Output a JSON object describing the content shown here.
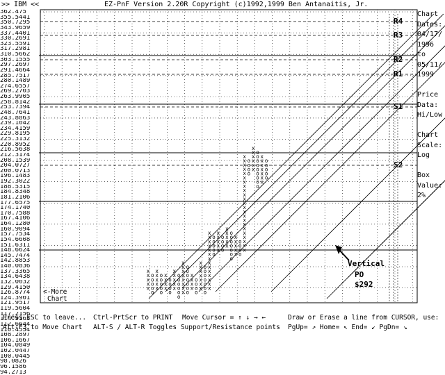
{
  "header": {
    "nav": ">> IBM <<",
    "title": "EZ-PnF Version 2.20R Copyright (c)1992,1999 Ben Antanaitis, Jr."
  },
  "y_axis_labels": [
    "362.475",
    "355.5441",
    "350.7295",
    "343.9659",
    "337.4401",
    "330.2691",
    "323.5591",
    "317.2981",
    "310.5662",
    "303.1555",
    "297.2697",
    "291.4664",
    "285.7517",
    "280.1489",
    "274.6557",
    "269.2703",
    "263.9905",
    "258.8142",
    "253.7394",
    "248.7641",
    "243.8863",
    "239.1042",
    "234.4159",
    "229.8195",
    "225.3132",
    "220.8952",
    "216.5638",
    "212.3174",
    "208.1539",
    "204.0727",
    "200.0713",
    "196.1483",
    "192.3022",
    "188.5315",
    "184.8348",
    "181.2106",
    "177.6575",
    "174.1740",
    "170.7588",
    "167.4106",
    "164.1280",
    "160.9094",
    "157.7534",
    "154.6608",
    "151.6311",
    "148.6624",
    "145.7474",
    "142.8853",
    "140.0836",
    "137.3365",
    "134.6438",
    "132.0032",
    "129.4150",
    "126.8774",
    "124.3901",
    "121.9517",
    "119.5604",
    "117.2156",
    "114.9165",
    "112.6644",
    "110.4554",
    "108.2897",
    "106.1667",
    "104.0849",
    "102.0447",
    "100.0445",
    "98.0826",
    "96.1586",
    "94.2713"
  ],
  "chart_data": {
    "type": "point-and-figure",
    "columns": [
      {
        "x": "1998-04",
        "type": "X",
        "from": 100.04,
        "to": 108.29
      },
      {
        "x": "1998-05",
        "type": "O",
        "from": 106.17,
        "to": 98.08
      },
      {
        "x": "1998-05",
        "type": "X",
        "from": 100.04,
        "to": 108.29
      },
      {
        "x": "1998-06",
        "type": "O",
        "from": 106.17,
        "to": 98.08
      },
      {
        "x": "1998-06",
        "type": "X",
        "from": 100.04,
        "to": 106.17
      },
      {
        "x": "1998-07",
        "type": "O",
        "from": 104.08,
        "to": 98.08
      },
      {
        "x": "1998-07",
        "type": "X",
        "from": 100.04,
        "to": 108.29
      },
      {
        "x": "1998-08",
        "type": "O",
        "from": 106.17,
        "to": 96.16
      },
      {
        "x": "1998-08",
        "type": "X",
        "from": 98.08,
        "to": 112.66
      },
      {
        "x": "1998-09",
        "type": "O",
        "from": 110.46,
        "to": 98.08
      },
      {
        "x": "1998-09",
        "type": "X",
        "from": 100.04,
        "to": 106.17
      },
      {
        "x": "1998-10",
        "type": "O",
        "from": 104.08,
        "to": 98.08
      },
      {
        "x": "1998-10",
        "type": "X",
        "from": 100.04,
        "to": 112.66
      },
      {
        "x": "1998-10",
        "type": "O",
        "from": 110.46,
        "to": 98.08
      },
      {
        "x": "1998-11",
        "type": "X",
        "from": 100.04,
        "to": 129.42
      },
      {
        "x": "1998-11",
        "type": "O",
        "from": 126.88,
        "to": 117.22
      },
      {
        "x": "1998-12",
        "type": "X",
        "from": 119.56,
        "to": 129.42
      },
      {
        "x": "1998-12",
        "type": "O",
        "from": 126.88,
        "to": 119.56
      },
      {
        "x": "1999-01",
        "type": "X",
        "from": 121.95,
        "to": 132.0
      },
      {
        "x": "1999-01",
        "type": "O",
        "from": 129.42,
        "to": 114.92
      },
      {
        "x": "1999-02",
        "type": "X",
        "from": 117.22,
        "to": 126.88
      },
      {
        "x": "1999-02",
        "type": "O",
        "from": 124.39,
        "to": 117.22
      },
      {
        "x": "1999-03",
        "type": "X",
        "from": 119.56,
        "to": 185.0
      },
      {
        "x": "1999-03",
        "type": "O",
        "from": 181.21,
        "to": 170.76
      },
      {
        "x": "1999-04",
        "type": "X",
        "from": 174.17,
        "to": 192.3
      },
      {
        "x": "1999-04",
        "type": "O",
        "from": 188.53,
        "to": 160.91
      },
      {
        "x": "1999-04",
        "type": "X",
        "from": 164.13,
        "to": 184.83
      },
      {
        "x": "1999-05",
        "type": "O",
        "from": 181.21,
        "to": 167.41
      }
    ],
    "trend_lines": [
      "R4",
      "R3",
      "R2",
      "R1",
      "S1",
      "S2"
    ],
    "annotation": {
      "text_lines": [
        "Vertical",
        "PO",
        "$292"
      ]
    },
    "x_tick_labels": [
      "9",
      "8",
      "9",
      "9",
      "8",
      "9"
    ]
  },
  "side_panel": {
    "lines": [
      "Chart",
      "Dates:",
      "04/17/",
      "1996",
      "to",
      "05/11/",
      "1999",
      "",
      "Price",
      "Data:",
      "Hi/Low",
      "",
      "Chart",
      "Scale:",
      "Log",
      "",
      "Box",
      "Value:",
      "2%"
    ]
  },
  "more_chart": {
    "line1": "<-More",
    "line2": "Chart"
  },
  "footer": {
    "esc": "Press ESC to leave...",
    "print": "Ctrl-PrtScr to PRINT",
    "move_cursor": "Move Cursor = ↑ ↓ → ←",
    "draw": "Draw or Erase a line from CURSOR, use:",
    "altf3": "Alt-F3 to Move Chart",
    "alts": "ALT-S / ALT-R Toggles Support/Resistance points",
    "pg": "PgUp= ↗ Home= ↖ End= ↙ PgDn= ↘"
  },
  "colors": {
    "fg": "#000000",
    "bg": "#ffffff"
  }
}
